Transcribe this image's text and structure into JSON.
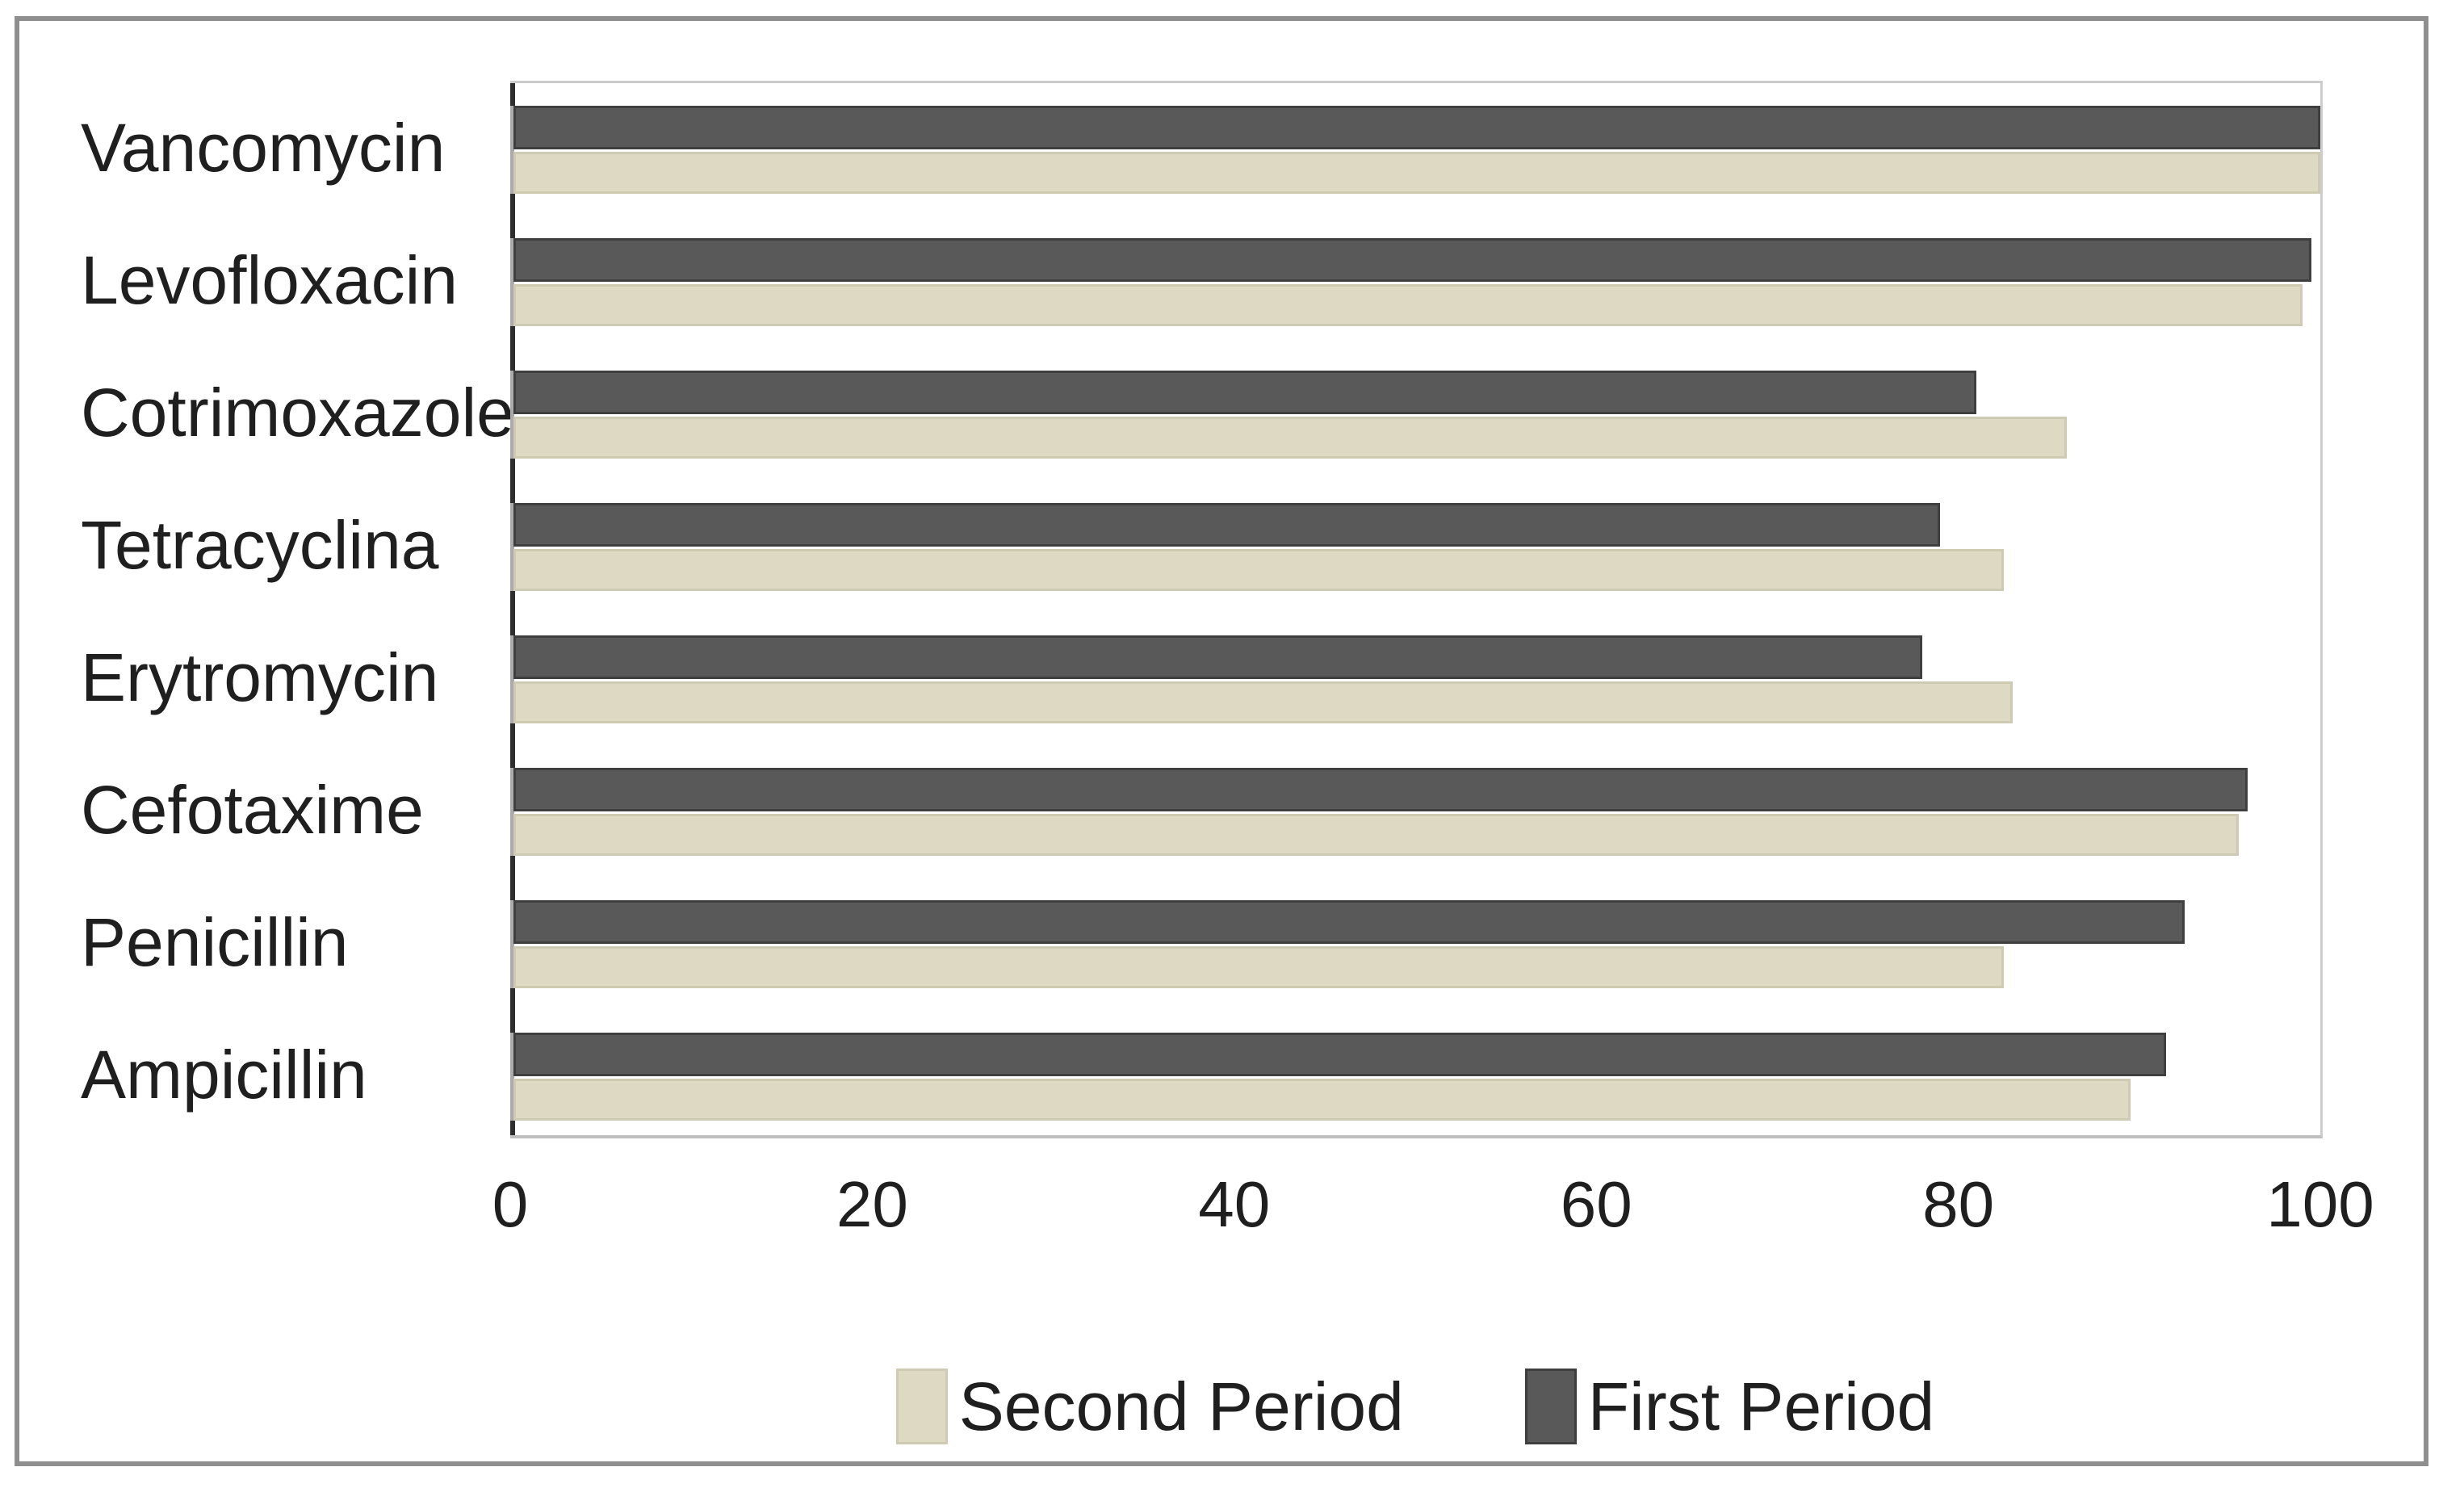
{
  "chart_data": {
    "type": "bar",
    "orientation": "horizontal",
    "title": "",
    "xlabel": "",
    "ylabel": "",
    "categories": [
      "Vancomycin",
      "Levofloxacin",
      "Cotrimoxazole",
      "Tetracyclina",
      "Erytromycin",
      "Cefotaxime",
      "Penicillin",
      "Ampicillin"
    ],
    "series": [
      {
        "name": "First Period",
        "color": "#595959",
        "values": [
          100,
          99.5,
          81,
          79,
          78,
          96,
          92.5,
          91.5
        ]
      },
      {
        "name": "Second Period",
        "color": "#ddd9c3",
        "values": [
          100,
          99,
          86,
          82.5,
          83,
          95.5,
          82.5,
          89.5
        ]
      }
    ],
    "xlim": [
      0,
      100
    ],
    "x_ticks": [
      0,
      20,
      40,
      60,
      80,
      100
    ],
    "x_tick_labels": [
      "0",
      "20",
      "40",
      "60",
      "80",
      "100"
    ],
    "grid": false,
    "legend": {
      "position": "bottom",
      "entries": [
        {
          "label": "Second Period",
          "color": "#ddd9c3"
        },
        {
          "label": "First Period",
          "color": "#595959"
        }
      ]
    }
  },
  "colors": {
    "first_period_bar": "#595959",
    "first_period_border": "#3f3f3f",
    "second_period_bar": "#ddd9c3",
    "second_period_border": "#cfcab2",
    "axis_line": "#2e2e2e",
    "plot_border": "#bfbfbf",
    "figure_frame": "#8f8f8f",
    "text": "#1f1f1f",
    "background": "#ffffff"
  }
}
